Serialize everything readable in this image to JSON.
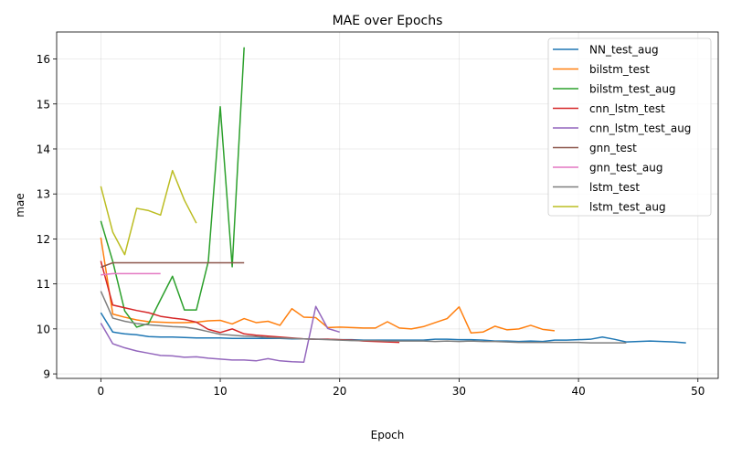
{
  "chart_data": {
    "type": "line",
    "title": "MAE over Epochs",
    "xlabel": "Epoch",
    "ylabel": "mae",
    "xlim": [
      -3.7,
      51.7
    ],
    "ylim": [
      8.9,
      16.6
    ],
    "xticks": [
      0,
      10,
      20,
      30,
      40,
      50
    ],
    "yticks": [
      9,
      10,
      11,
      12,
      13,
      14,
      15,
      16
    ],
    "grid": true,
    "legend_position": "top-right",
    "series": [
      {
        "name": "NN_test_aug",
        "color": "#1f77b4",
        "x": [
          0,
          1,
          2,
          3,
          4,
          5,
          6,
          7,
          8,
          9,
          10,
          11,
          12,
          13,
          14,
          15,
          16,
          17,
          18,
          19,
          20,
          21,
          22,
          23,
          24,
          25,
          26,
          27,
          28,
          29,
          30,
          31,
          32,
          33,
          34,
          35,
          36,
          37,
          38,
          39,
          40,
          41,
          42,
          43,
          44,
          45,
          46,
          47,
          48,
          49
        ],
        "values": [
          10.36,
          9.93,
          9.89,
          9.87,
          9.83,
          9.82,
          9.82,
          9.81,
          9.8,
          9.8,
          9.8,
          9.79,
          9.79,
          9.79,
          9.79,
          9.79,
          9.78,
          9.78,
          9.77,
          9.77,
          9.76,
          9.76,
          9.75,
          9.75,
          9.75,
          9.75,
          9.75,
          9.75,
          9.77,
          9.77,
          9.76,
          9.76,
          9.75,
          9.73,
          9.73,
          9.72,
          9.73,
          9.72,
          9.75,
          9.75,
          9.76,
          9.77,
          9.82,
          9.77,
          9.71,
          9.72,
          9.73,
          9.72,
          9.71,
          9.69
        ]
      },
      {
        "name": "bilstm_test",
        "color": "#ff7f0e",
        "x": [
          0,
          1,
          2,
          3,
          4,
          5,
          6,
          7,
          8,
          9,
          10,
          11,
          12,
          13,
          14,
          15,
          16,
          17,
          18,
          19,
          20,
          21,
          22,
          23,
          24,
          25,
          26,
          27,
          28,
          29,
          30,
          31,
          32,
          33,
          34,
          35,
          36,
          37,
          38
        ],
        "values": [
          12.03,
          10.33,
          10.26,
          10.2,
          10.16,
          10.15,
          10.14,
          10.14,
          10.15,
          10.18,
          10.19,
          10.11,
          10.23,
          10.14,
          10.17,
          10.08,
          10.45,
          10.26,
          10.25,
          10.03,
          10.04,
          10.03,
          10.02,
          10.02,
          10.16,
          10.02,
          10.0,
          10.05,
          10.14,
          10.23,
          10.49,
          9.91,
          9.93,
          10.06,
          9.98,
          10.0,
          10.08,
          9.99,
          9.96
        ]
      },
      {
        "name": "bilstm_test_aug",
        "color": "#2ca02c",
        "x": [
          0,
          1,
          2,
          3,
          4,
          5,
          6,
          7,
          8,
          9,
          10,
          11,
          12
        ],
        "values": [
          12.4,
          11.5,
          10.4,
          10.04,
          10.12,
          10.65,
          11.17,
          10.42,
          10.42,
          11.5,
          14.94,
          11.38,
          16.26
        ]
      },
      {
        "name": "cnn_lstm_test",
        "color": "#d62728",
        "x": [
          0,
          1,
          2,
          3,
          4,
          5,
          6,
          7,
          8,
          9,
          10,
          11,
          12,
          13,
          14,
          15,
          16,
          17,
          18,
          19,
          20,
          21,
          22,
          23,
          24,
          25
        ],
        "values": [
          11.51,
          10.53,
          10.47,
          10.41,
          10.36,
          10.28,
          10.24,
          10.21,
          10.15,
          9.99,
          9.92,
          10.0,
          9.89,
          9.86,
          9.84,
          9.82,
          9.8,
          9.78,
          9.77,
          9.77,
          9.76,
          9.75,
          9.73,
          9.72,
          9.71,
          9.7
        ]
      },
      {
        "name": "cnn_lstm_test_aug",
        "color": "#9467bd",
        "x": [
          0,
          1,
          2,
          3,
          4,
          5,
          6,
          7,
          8,
          9,
          10,
          11,
          12,
          13,
          14,
          15,
          16,
          17,
          18,
          19,
          20
        ],
        "values": [
          10.13,
          9.67,
          9.58,
          9.51,
          9.46,
          9.41,
          9.4,
          9.37,
          9.38,
          9.35,
          9.33,
          9.31,
          9.31,
          9.29,
          9.34,
          9.29,
          9.27,
          9.26,
          10.5,
          10.01,
          9.93
        ]
      },
      {
        "name": "gnn_test",
        "color": "#8c564b",
        "x": [
          0,
          1,
          2,
          3,
          4,
          5,
          6,
          7,
          8,
          9,
          10,
          11,
          12
        ],
        "values": [
          11.37,
          11.47,
          11.47,
          11.47,
          11.47,
          11.47,
          11.47,
          11.47,
          11.47,
          11.47,
          11.47,
          11.47,
          11.47
        ]
      },
      {
        "name": "gnn_test_aug",
        "color": "#e377c2",
        "x": [
          0,
          1,
          2,
          3,
          4,
          5
        ],
        "values": [
          11.2,
          11.23,
          11.23,
          11.23,
          11.23,
          11.23
        ]
      },
      {
        "name": "lstm_test",
        "color": "#7f7f7f",
        "x": [
          0,
          1,
          2,
          3,
          4,
          5,
          6,
          7,
          8,
          9,
          10,
          11,
          12,
          13,
          14,
          15,
          16,
          17,
          18,
          19,
          20,
          21,
          22,
          23,
          24,
          25,
          26,
          27,
          28,
          29,
          30,
          31,
          32,
          33,
          34,
          35,
          36,
          37,
          38,
          39,
          40,
          41,
          42,
          43,
          44
        ],
        "values": [
          10.84,
          10.24,
          10.17,
          10.12,
          10.09,
          10.07,
          10.05,
          10.04,
          10.0,
          9.94,
          9.88,
          9.86,
          9.84,
          9.83,
          9.81,
          9.8,
          9.79,
          9.78,
          9.77,
          9.76,
          9.75,
          9.74,
          9.74,
          9.74,
          9.73,
          9.73,
          9.73,
          9.73,
          9.72,
          9.73,
          9.72,
          9.73,
          9.72,
          9.72,
          9.71,
          9.7,
          9.7,
          9.7,
          9.7,
          9.7,
          9.7,
          9.69,
          9.69,
          9.69,
          9.69
        ]
      },
      {
        "name": "lstm_test_aug",
        "color": "#bcbd22",
        "x": [
          0,
          1,
          2,
          3,
          4,
          5,
          6,
          7,
          8
        ],
        "values": [
          13.17,
          12.15,
          11.65,
          12.68,
          12.63,
          12.53,
          13.52,
          12.86,
          12.35
        ]
      }
    ]
  }
}
